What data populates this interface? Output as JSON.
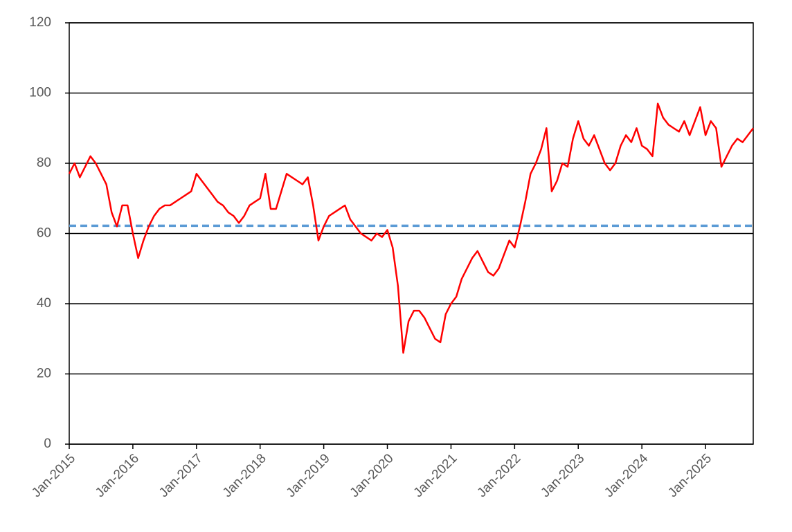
{
  "chart_data": {
    "type": "line",
    "x": [
      "2015-01",
      "2015-02",
      "2015-03",
      "2015-04",
      "2015-05",
      "2015-06",
      "2015-07",
      "2015-08",
      "2015-09",
      "2015-10",
      "2015-11",
      "2015-12",
      "2016-01",
      "2016-02",
      "2016-03",
      "2016-04",
      "2016-05",
      "2016-06",
      "2016-07",
      "2016-08",
      "2016-09",
      "2016-10",
      "2016-11",
      "2016-12",
      "2017-01",
      "2017-02",
      "2017-03",
      "2017-04",
      "2017-05",
      "2017-06",
      "2017-07",
      "2017-08",
      "2017-09",
      "2017-10",
      "2017-11",
      "2017-12",
      "2018-01",
      "2018-02",
      "2018-03",
      "2018-04",
      "2018-05",
      "2018-06",
      "2018-07",
      "2018-08",
      "2018-09",
      "2018-10",
      "2018-11",
      "2018-12",
      "2019-01",
      "2019-02",
      "2019-03",
      "2019-04",
      "2019-05",
      "2019-06",
      "2019-07",
      "2019-08",
      "2019-09",
      "2019-10",
      "2019-11",
      "2019-12",
      "2020-01",
      "2020-02",
      "2020-03",
      "2020-04",
      "2020-05",
      "2020-06",
      "2020-07",
      "2020-08",
      "2020-09",
      "2020-10",
      "2020-11",
      "2020-12",
      "2021-01",
      "2021-02",
      "2021-03",
      "2021-04",
      "2021-05",
      "2021-06",
      "2021-07",
      "2021-08",
      "2021-09",
      "2021-10",
      "2021-11",
      "2021-12",
      "2022-01",
      "2022-02",
      "2022-03",
      "2022-04",
      "2022-05",
      "2022-06",
      "2022-07",
      "2022-08",
      "2022-09",
      "2022-10",
      "2022-11",
      "2022-12",
      "2023-01",
      "2023-02",
      "2023-03",
      "2023-04",
      "2023-05",
      "2023-06",
      "2023-07",
      "2023-08",
      "2023-09",
      "2023-10",
      "2023-11",
      "2023-12",
      "2024-01",
      "2024-02",
      "2024-03",
      "2024-04",
      "2024-05",
      "2024-06",
      "2024-07",
      "2024-08",
      "2024-09",
      "2024-10",
      "2024-11",
      "2024-12",
      "2025-01",
      "2025-02",
      "2025-03",
      "2025-04",
      "2025-05",
      "2025-06",
      "2025-07",
      "2025-08",
      "2025-09",
      "2025-10"
    ],
    "series": [
      {
        "color": "#ff0000",
        "values": [
          77,
          80,
          76,
          79,
          82,
          80,
          77,
          74,
          66,
          62,
          68,
          68,
          60,
          53,
          58,
          62,
          65,
          67,
          68,
          68,
          69,
          70,
          71,
          72,
          77,
          75,
          73,
          71,
          69,
          68,
          66,
          65,
          63,
          65,
          68,
          69,
          70,
          77,
          67,
          67,
          72,
          77,
          76,
          75,
          74,
          76,
          68,
          58,
          62,
          65,
          66,
          67,
          68,
          64,
          62,
          60,
          59,
          58,
          60,
          59,
          61,
          56,
          45,
          26,
          35,
          38,
          38,
          36,
          33,
          30,
          29,
          37,
          40,
          42,
          47,
          50,
          53,
          55,
          52,
          49,
          48,
          50,
          54,
          58,
          56,
          62,
          69,
          77,
          80,
          84,
          90,
          72,
          75,
          80,
          79,
          87,
          92,
          87,
          85,
          88,
          84,
          80,
          78,
          80,
          85,
          88,
          86,
          90,
          85,
          84,
          82,
          97,
          93,
          91,
          90,
          89,
          92,
          88,
          92,
          96,
          88,
          92,
          90,
          79,
          82,
          85,
          87,
          86,
          88,
          90
        ]
      }
    ],
    "reference_line": {
      "value": 62.2,
      "color": "#5b9bd5",
      "dashed": true
    },
    "xlim": [
      "2015-01",
      "2025-10"
    ],
    "xticks": [
      {
        "value": "2015-01",
        "label": "Jan-2015"
      },
      {
        "value": "2016-01",
        "label": "Jan-2016"
      },
      {
        "value": "2017-01",
        "label": "Jan-2017"
      },
      {
        "value": "2018-01",
        "label": "Jan-2018"
      },
      {
        "value": "2019-01",
        "label": "Jan-2019"
      },
      {
        "value": "2020-01",
        "label": "Jan-2020"
      },
      {
        "value": "2021-01",
        "label": "Jan-2021"
      },
      {
        "value": "2022-01",
        "label": "Jan-2022"
      },
      {
        "value": "2023-01",
        "label": "Jan-2023"
      },
      {
        "value": "2024-01",
        "label": "Jan-2024"
      },
      {
        "value": "2025-01",
        "label": "Jan-2025"
      }
    ],
    "ylim": [
      0,
      120
    ],
    "yticks": [
      0,
      20,
      40,
      60,
      80,
      100,
      120
    ],
    "grid": true
  }
}
